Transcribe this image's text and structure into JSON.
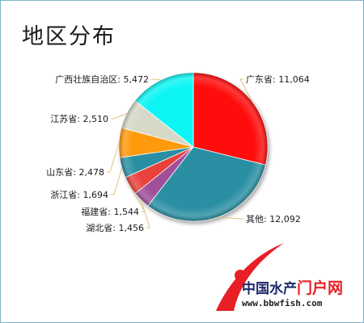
{
  "chart_data": {
    "type": "pie",
    "title": "地区分布",
    "slices": [
      {
        "label": "广东省",
        "value": 11064,
        "value_label": "11,064",
        "color": "#ff0d0d"
      },
      {
        "label": "其他",
        "value": 12092,
        "value_label": "12,092",
        "color": "#2a8fa3"
      },
      {
        "label": "湖北省",
        "value": 1456,
        "value_label": "1,456",
        "color": "#a0509a"
      },
      {
        "label": "福建省",
        "value": 1544,
        "value_label": "1,544",
        "color": "#e8423c"
      },
      {
        "label": "浙江省",
        "value": 1694,
        "value_label": "1,694",
        "color": "#2a8fa3"
      },
      {
        "label": "山东省",
        "value": 2478,
        "value_label": "2,478",
        "color": "#ff9a10"
      },
      {
        "label": "江苏省",
        "value": 2510,
        "value_label": "2,510",
        "color": "#d8d8c8"
      },
      {
        "label": "广西壮族自治区",
        "value": 5472,
        "value_label": "5,472",
        "color": "#10f5f5"
      }
    ],
    "start_angle_deg": 90,
    "direction": "clockwise",
    "label_line_color": "#e0c080"
  },
  "watermark": {
    "brand_cn_main": "中国水产",
    "brand_cn_accent": "门户网",
    "url": "www.bbwfish.com",
    "swoosh_color": "#e81f25"
  }
}
